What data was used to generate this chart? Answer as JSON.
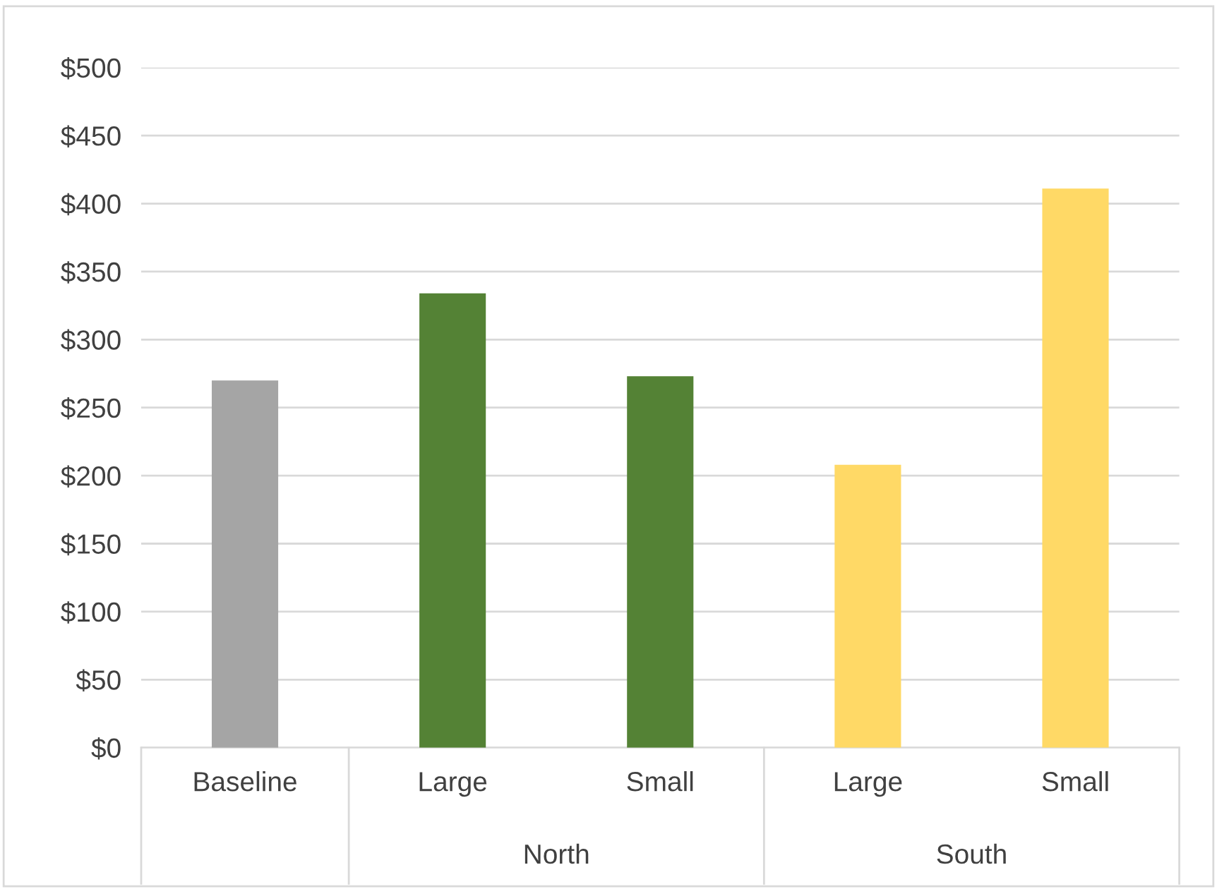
{
  "chart_data": {
    "type": "bar",
    "categories": [
      "Baseline",
      "Large",
      "Small",
      "Large",
      "Small"
    ],
    "values": [
      270,
      334,
      273,
      208,
      411
    ],
    "colors": [
      "#a5a5a5",
      "#548235",
      "#548235",
      "#ffd966",
      "#ffd966"
    ],
    "ylim": [
      0,
      500
    ],
    "yticks": [
      {
        "value": 0,
        "label": "$0"
      },
      {
        "value": 50,
        "label": "$50"
      },
      {
        "value": 100,
        "label": "$100"
      },
      {
        "value": 150,
        "label": "$150"
      },
      {
        "value": 200,
        "label": "$200"
      },
      {
        "value": 250,
        "label": "$250"
      },
      {
        "value": 300,
        "label": "$300"
      },
      {
        "value": 350,
        "label": "$350"
      },
      {
        "value": 400,
        "label": "$400"
      },
      {
        "value": 450,
        "label": "$450"
      },
      {
        "value": 500,
        "label": "$500"
      }
    ],
    "grid": "y",
    "annotations": [
      "North",
      "South"
    ]
  }
}
